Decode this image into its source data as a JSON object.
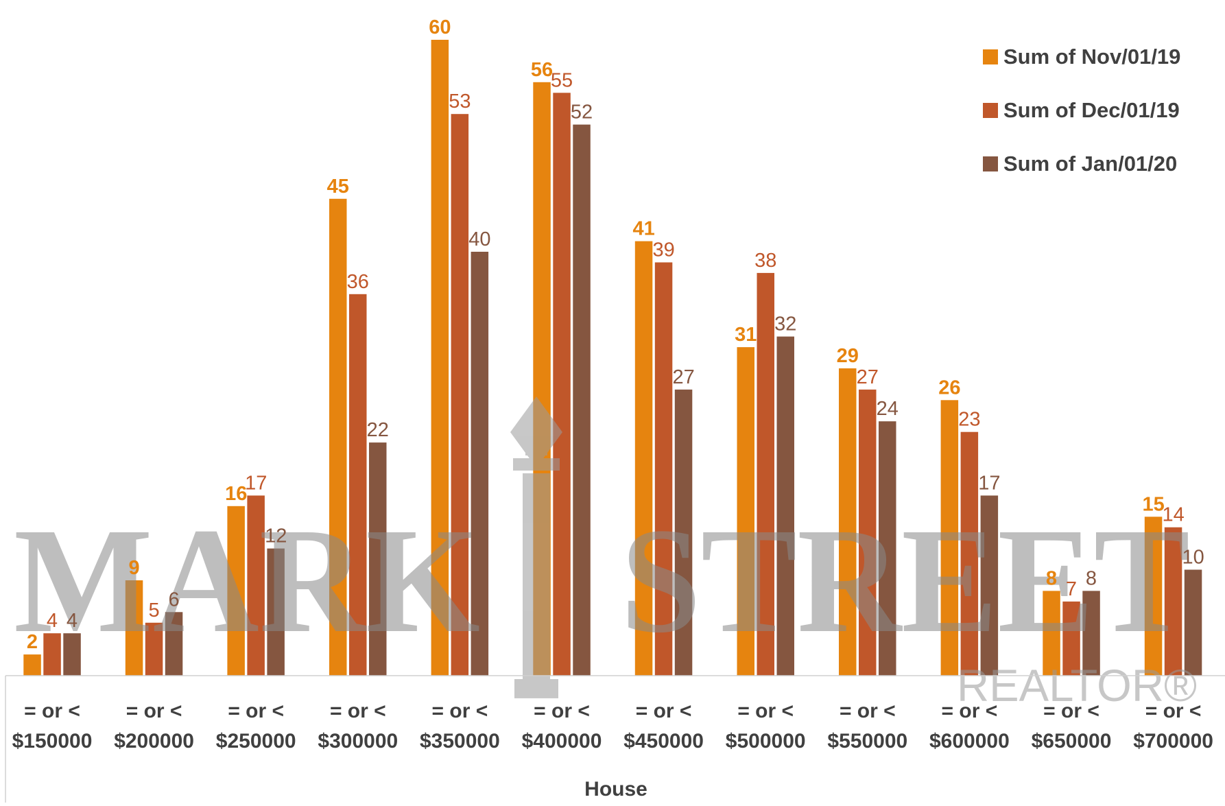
{
  "chart_data": {
    "type": "bar",
    "xlabel": "House",
    "categories": [
      [
        "= or <",
        "$150000"
      ],
      [
        "= or <",
        "$200000"
      ],
      [
        "= or <",
        "$250000"
      ],
      [
        "= or <",
        "$300000"
      ],
      [
        "= or <",
        "$350000"
      ],
      [
        "= or <",
        "$400000"
      ],
      [
        "= or <",
        "$450000"
      ],
      [
        "= or <",
        "$500000"
      ],
      [
        "= or <",
        "$550000"
      ],
      [
        "= or <",
        "$600000"
      ],
      [
        "= or <",
        "$650000"
      ],
      [
        "= or <",
        "$700000"
      ]
    ],
    "series": [
      {
        "name": "Sum of Nov/01/19",
        "color": "#E6840F",
        "label_color": "#E6840F",
        "label_bold": true,
        "values": [
          2,
          9,
          16,
          45,
          60,
          56,
          41,
          31,
          29,
          26,
          8,
          15
        ]
      },
      {
        "name": "Sum of Dec/01/19",
        "color": "#C0572A",
        "label_color": "#C0572A",
        "label_bold": false,
        "values": [
          4,
          5,
          17,
          36,
          53,
          55,
          39,
          38,
          27,
          23,
          7,
          14
        ]
      },
      {
        "name": "Sum of Jan/01/20",
        "color": "#855640",
        "label_color": "#855640",
        "label_bold": false,
        "values": [
          4,
          6,
          12,
          22,
          40,
          52,
          27,
          32,
          24,
          17,
          8,
          10
        ]
      }
    ],
    "ylim": [
      0,
      61
    ],
    "grid": false,
    "legend_position": "top-right",
    "data_labels": true
  },
  "watermark": {
    "brand_left": "MARK",
    "brand_right": "STREET",
    "sub": "REALTOR®"
  }
}
